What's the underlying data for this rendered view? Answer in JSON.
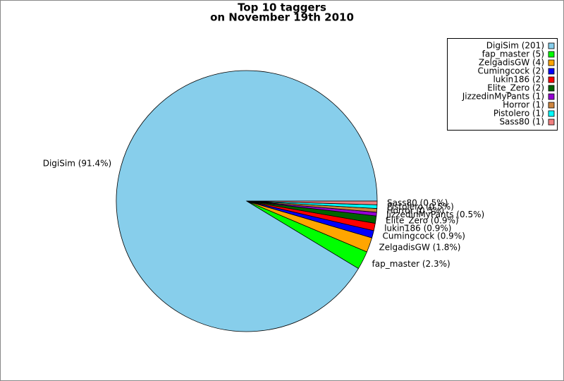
{
  "chart_data": {
    "type": "pie",
    "title": "Top 10 taggers",
    "subtitle": "on November 19th 2010",
    "legend_labels": [
      "DigiSim (201)",
      "fap_master (5)",
      "ZelgadisGW (4)",
      "Cumingcock (2)",
      "lukin186 (2)",
      "Elite_Zero (2)",
      "JizzedinMyPants (1)",
      "Horror (1)",
      "Pistolero (1)",
      "Sass80 (1)"
    ],
    "slice_labels": [
      "DigiSim (91.4%)",
      "fap_master (2.3%)",
      "ZelgadisGW (1.8%)",
      "Cumingcock (0.9%)",
      "lukin186 (0.9%)",
      "Elite_Zero (0.9%)",
      "JizzedinMyPants (0.5%)",
      "Horror (0.5%)",
      "Pistolero (0.5%)",
      "Sass80 (0.5%)"
    ],
    "values": [
      201,
      5,
      4,
      2,
      2,
      2,
      1,
      1,
      1,
      1
    ],
    "colors": [
      "#87ceeb",
      "#00ff00",
      "#ffa500",
      "#0000ff",
      "#ff0000",
      "#006400",
      "#9400d3",
      "#cd853f",
      "#00ffff",
      "#f08080"
    ],
    "legend": "upper right"
  }
}
